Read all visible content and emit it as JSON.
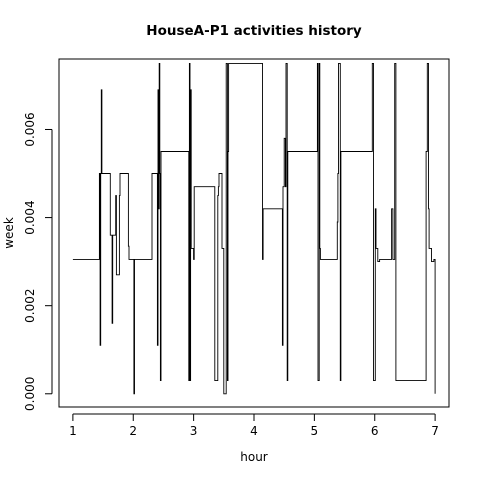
{
  "chart_data": {
    "type": "line",
    "title": "HouseA-P1 activities history",
    "xlabel": "hour",
    "ylabel": "week",
    "xlim": [
      0.77,
      7.23
    ],
    "ylim": [
      -0.0003,
      0.0076
    ],
    "x_ticks": [
      1,
      2,
      3,
      4,
      5,
      6,
      7
    ],
    "x_tick_labels": [
      "1",
      "2",
      "3",
      "4",
      "5",
      "6",
      "7"
    ],
    "y_ticks": [
      0,
      0.002,
      0.004,
      0.006
    ],
    "y_tick_labels": [
      "0.000",
      "0.002",
      "0.004",
      "0.006"
    ],
    "grid": false,
    "legend": "none",
    "line_color": "#000000",
    "series": [
      {
        "x": [
          1.0,
          1.44,
          1.44,
          1.45,
          1.45,
          1.46,
          1.46,
          1.47,
          1.47,
          1.48,
          1.48,
          1.62,
          1.62,
          1.65,
          1.65,
          1.66,
          1.66,
          1.71,
          1.71,
          1.72,
          1.72,
          1.77,
          1.77,
          1.78,
          1.78,
          1.92,
          1.92,
          1.93,
          1.93,
          2.01,
          2.01,
          2.02,
          2.02,
          2.31,
          2.31,
          2.4,
          2.4,
          2.41,
          2.41,
          2.42,
          2.42,
          2.43,
          2.43,
          2.44,
          2.44,
          2.45,
          2.45,
          2.46,
          2.46,
          2.92,
          2.92,
          2.93,
          2.93,
          2.94,
          2.94,
          2.95,
          2.95,
          2.96,
          2.96,
          3.0,
          3.0,
          3.01,
          3.01,
          3.35,
          3.35,
          3.4,
          3.4,
          3.41,
          3.41,
          3.42,
          3.42,
          3.47,
          3.47,
          3.5,
          3.5,
          3.54,
          3.54,
          3.56,
          3.56,
          3.57,
          3.57,
          3.58,
          3.58,
          4.14,
          4.14,
          4.15,
          4.15,
          4.47,
          4.47,
          4.48,
          4.48,
          4.5,
          4.5,
          4.52,
          4.52,
          4.53,
          4.53,
          4.55,
          4.55,
          4.56,
          4.56,
          5.05,
          5.05,
          5.06,
          5.06,
          5.08,
          5.08,
          5.09,
          5.09,
          5.1,
          5.1,
          5.38,
          5.38,
          5.39,
          5.39,
          5.4,
          5.4,
          5.43,
          5.43,
          5.44,
          5.44,
          5.96,
          5.96,
          5.98,
          5.98,
          6.01,
          6.01,
          6.02,
          6.02,
          6.05,
          6.05,
          6.08,
          6.08,
          6.28,
          6.28,
          6.3,
          6.3,
          6.33,
          6.33,
          6.35,
          6.35,
          6.85,
          6.85,
          6.87,
          6.87,
          6.89,
          6.89,
          6.9,
          6.9,
          6.94,
          6.94,
          6.98,
          6.98,
          7.0,
          7.0
        ],
        "y": [
          0.00305,
          0.00305,
          0.005,
          0.005,
          0.0011,
          0.0011,
          0.005,
          0.005,
          0.0069,
          0.0069,
          0.005,
          0.005,
          0.0036,
          0.0036,
          0.0016,
          0.0016,
          0.0036,
          0.0036,
          0.0045,
          0.0045,
          0.0027,
          0.0027,
          0.0045,
          0.0045,
          0.005,
          0.005,
          0.00335,
          0.00335,
          0.00305,
          0.00305,
          0.0,
          0.0,
          0.00305,
          0.00305,
          0.005,
          0.005,
          0.0011,
          0.0011,
          0.0069,
          0.0069,
          0.0042,
          0.0042,
          0.0075,
          0.0075,
          0.005,
          0.005,
          0.0003,
          0.0003,
          0.0055,
          0.0055,
          0.0003,
          0.0003,
          0.0075,
          0.0075,
          0.0003,
          0.0003,
          0.0069,
          0.0069,
          0.0033,
          0.0033,
          0.00305,
          0.00305,
          0.0047,
          0.0047,
          0.0003,
          0.0003,
          0.0045,
          0.0045,
          0.0047,
          0.0047,
          0.005,
          0.005,
          0.0033,
          0.0033,
          0.0,
          0.0,
          0.0075,
          0.0075,
          0.0003,
          0.0003,
          0.0055,
          0.0055,
          0.0075,
          0.0075,
          0.00305,
          0.00305,
          0.0042,
          0.0042,
          0.0011,
          0.0011,
          0.0047,
          0.0047,
          0.0058,
          0.0058,
          0.0047,
          0.0047,
          0.0075,
          0.0075,
          0.0003,
          0.0003,
          0.0055,
          0.0055,
          0.0075,
          0.0075,
          0.0003,
          0.0003,
          0.0075,
          0.0075,
          0.0033,
          0.0033,
          0.00305,
          0.00305,
          0.0039,
          0.0039,
          0.005,
          0.005,
          0.0075,
          0.0075,
          0.0003,
          0.0003,
          0.0055,
          0.0055,
          0.0075,
          0.0075,
          0.0003,
          0.0003,
          0.0042,
          0.0042,
          0.0033,
          0.0033,
          0.003,
          0.003,
          0.00305,
          0.00305,
          0.0042,
          0.0042,
          0.00305,
          0.00305,
          0.0075,
          0.0075,
          0.0003,
          0.0003,
          0.0055,
          0.0055,
          0.0075,
          0.0075,
          0.0042,
          0.0042,
          0.0033,
          0.0033,
          0.003,
          0.003,
          0.00305,
          0.00305,
          0.0
        ]
      }
    ]
  }
}
